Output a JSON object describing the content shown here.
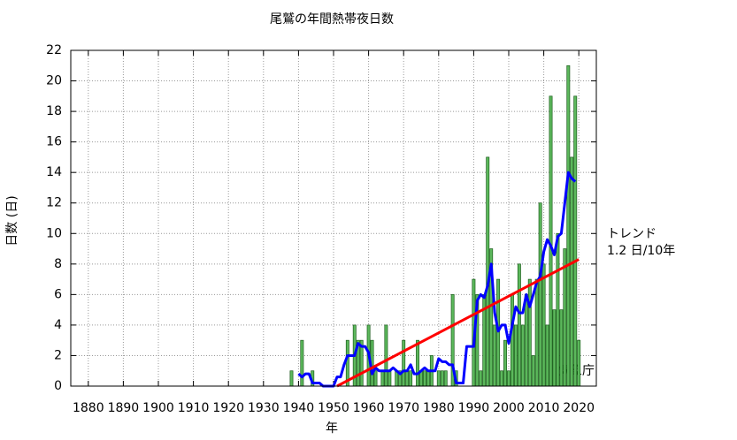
{
  "chart_data": {
    "type": "bar",
    "title": "尾鷲の年間熱帯夜日数",
    "x_label": "年",
    "y_label": "日数 (日)",
    "x": [
      1938,
      1939,
      1940,
      1941,
      1942,
      1943,
      1944,
      1945,
      1946,
      1947,
      1948,
      1949,
      1950,
      1951,
      1952,
      1953,
      1954,
      1955,
      1956,
      1957,
      1958,
      1959,
      1960,
      1961,
      1962,
      1963,
      1964,
      1965,
      1966,
      1967,
      1968,
      1969,
      1970,
      1971,
      1972,
      1973,
      1974,
      1975,
      1976,
      1977,
      1978,
      1979,
      1980,
      1981,
      1982,
      1983,
      1984,
      1985,
      1986,
      1987,
      1988,
      1989,
      1990,
      1991,
      1992,
      1993,
      1994,
      1995,
      1996,
      1997,
      1998,
      1999,
      2000,
      2001,
      2002,
      2003,
      2004,
      2005,
      2006,
      2007,
      2008,
      2009,
      2010,
      2011,
      2012,
      2013,
      2014,
      2015,
      2016,
      2017,
      2018,
      2019,
      2020
    ],
    "values": [
      1,
      0,
      0,
      3,
      0,
      0,
      1,
      0,
      0,
      0,
      0,
      0,
      0,
      0,
      0,
      0,
      3,
      0,
      4,
      3,
      3,
      0,
      4,
      3,
      1,
      0,
      1,
      4,
      1,
      0,
      1,
      1,
      3,
      1,
      1,
      0,
      3,
      1,
      1,
      1,
      2,
      0,
      1,
      1,
      1,
      0,
      6,
      1,
      0,
      0,
      0,
      0,
      7,
      6,
      1,
      6,
      15,
      9,
      4,
      7,
      1,
      3,
      1,
      6,
      4,
      8,
      4,
      6,
      7,
      2,
      7,
      12,
      8,
      4,
      19,
      5,
      10,
      5,
      9,
      21,
      15,
      19,
      3
    ],
    "color": "#5cb85c",
    "moving_average": {
      "color": "#0000ff",
      "x": [
        1940,
        1941,
        1942,
        1943,
        1944,
        1945,
        1946,
        1947,
        1948,
        1949,
        1950,
        1951,
        1952,
        1953,
        1954,
        1955,
        1956,
        1957,
        1958,
        1959,
        1960,
        1961,
        1962,
        1963,
        1964,
        1965,
        1966,
        1967,
        1968,
        1969,
        1970,
        1971,
        1972,
        1973,
        1974,
        1975,
        1976,
        1977,
        1978,
        1979,
        1980,
        1981,
        1982,
        1983,
        1984,
        1985,
        1986,
        1987,
        1988,
        1989,
        1990,
        1991,
        1992,
        1993,
        1994,
        1995,
        1996,
        1997,
        1998,
        1999,
        2000,
        2001,
        2002,
        2003,
        2004,
        2005,
        2006,
        2007,
        2008,
        2009,
        2010,
        2011,
        2012,
        2013,
        2014,
        2015,
        2016,
        2017,
        2018,
        2019
      ],
      "values": [
        0.8,
        0.6,
        0.8,
        0.8,
        0.2,
        0.2,
        0.2,
        0,
        0,
        0,
        0,
        0.6,
        0.6,
        1.4,
        2,
        2,
        2,
        2.8,
        2.6,
        2.6,
        2.2,
        0.8,
        1.2,
        1,
        1,
        1,
        1,
        1.2,
        1,
        0.8,
        1,
        1,
        1.4,
        0.8,
        0.8,
        1,
        1.2,
        1,
        1,
        1,
        1.8,
        1.6,
        1.6,
        1.4,
        1.4,
        0.2,
        0.2,
        0.2,
        2.6,
        2.6,
        2.6,
        5.6,
        6,
        5.8,
        6.6,
        8,
        4.8,
        3.6,
        4,
        4,
        2.8,
        4,
        5.2,
        4.8,
        4.8,
        6,
        5.2,
        6,
        6.8,
        7.2,
        8.8,
        9.6,
        9.2,
        8.6,
        9.8,
        10,
        12,
        14,
        13.6,
        13.4
      ]
    },
    "trend": {
      "color": "#ff0000",
      "x": [
        1951,
        2020
      ],
      "values": [
        0,
        8.3
      ]
    },
    "annotations": [
      "トレンド",
      "1.2 日/10年",
      "気象庁"
    ],
    "xlim": [
      1875,
      2025
    ],
    "xticks": [
      1880,
      1890,
      1900,
      1910,
      1920,
      1930,
      1940,
      1950,
      1960,
      1970,
      1980,
      1990,
      2000,
      2010,
      2020
    ],
    "ylim": [
      0,
      22
    ],
    "yticks": [
      0,
      2,
      4,
      6,
      8,
      10,
      12,
      14,
      16,
      18,
      20,
      22
    ],
    "grid": true
  }
}
